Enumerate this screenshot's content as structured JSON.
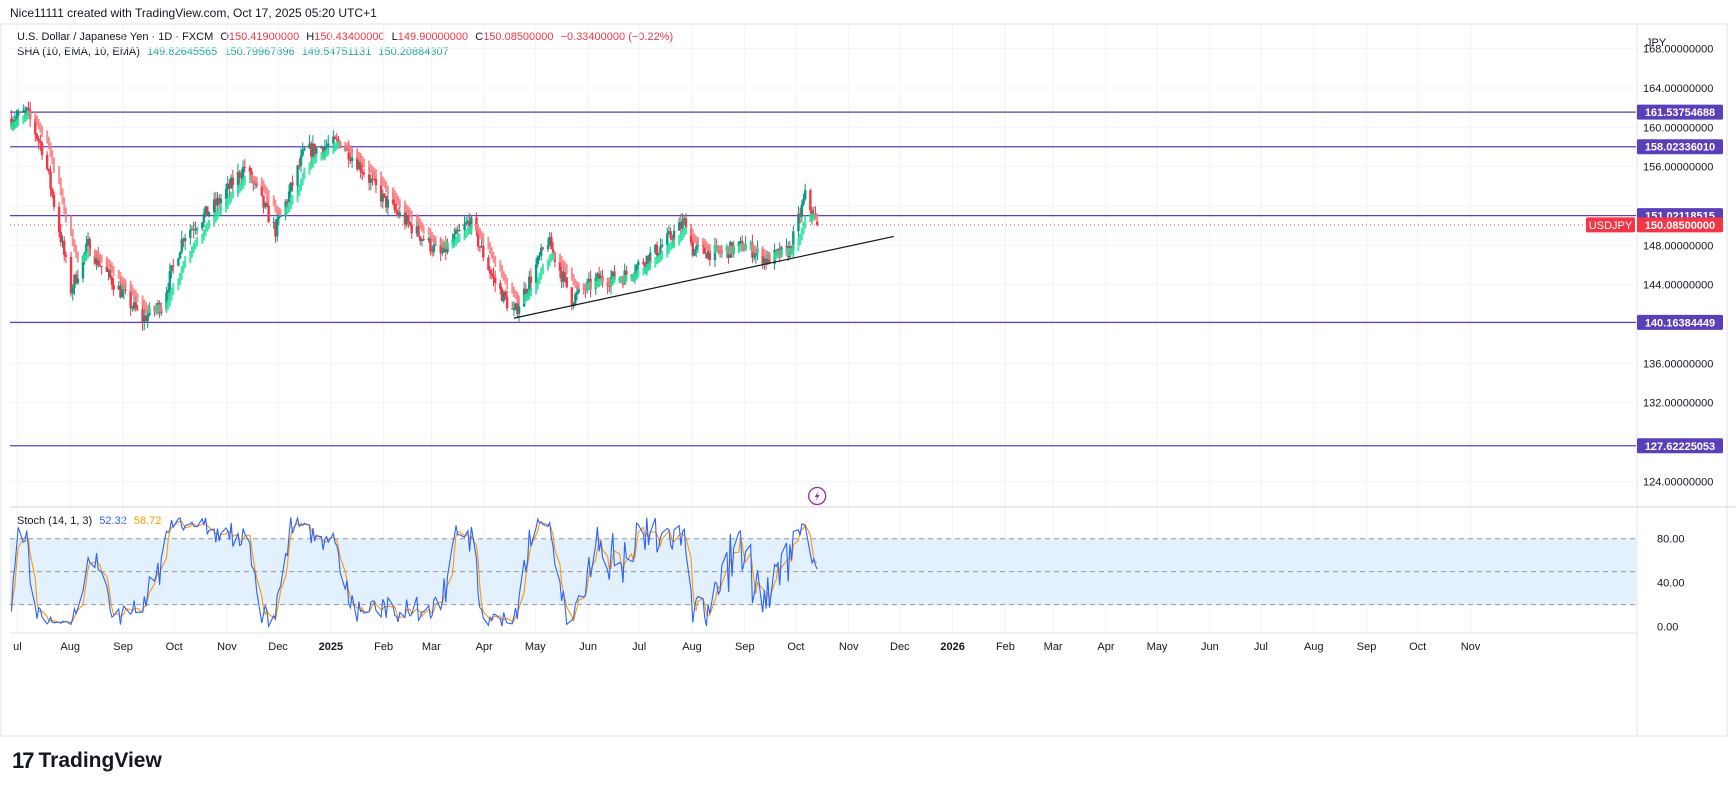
{
  "header": {
    "created_by": "Nice11111 created with TradingView.com, Oct 17, 2025 05:20 UTC+1"
  },
  "symbol": {
    "name": "U.S. Dollar / Japanese Yen · 1D · FXCM",
    "open_label": "O",
    "open": "150.41900000",
    "high_label": "H",
    "high": "150.43400000",
    "low_label": "L",
    "low": "149.90000000",
    "close_label": "C",
    "close": "150.08500000",
    "change": "−0.33400000 (−0.22%)"
  },
  "indicator_sha": {
    "name": "SHA (10, EMA, 10, EMA)",
    "v1": "149.82645565",
    "v2": "150.79967896",
    "v3": "149.54751131",
    "v4": "150.20884307"
  },
  "indicator_stoch": {
    "name": "Stoch (14, 1, 3)",
    "k": "52.32",
    "d": "58.72"
  },
  "currency": "JPY",
  "ticker_tag": "USDJPY",
  "brand": "TradingView",
  "colors": {
    "up": "#22ab94",
    "down": "#f23645",
    "line": "#5b3fb8",
    "stoch_k": "#2962ff",
    "stoch_d": "#ff9800",
    "band": "#e3f0fd"
  },
  "chart_data": [
    {
      "type": "candlestick",
      "title": "U.S. Dollar / Japanese Yen · 1D · FXCM",
      "x_labels": [
        "ul",
        "Aug",
        "Sep",
        "Oct",
        "Nov",
        "Dec",
        "2025",
        "Feb",
        "Mar",
        "Apr",
        "May",
        "Jun",
        "Jul",
        "Aug",
        "Sep",
        "Oct",
        "Nov",
        "Dec",
        "2026",
        "Feb",
        "Mar",
        "Apr",
        "May",
        "Jun",
        "Jul",
        "Aug",
        "Sep",
        "Oct",
        "Nov"
      ],
      "y_ticks": [
        "168.00000000",
        "164.00000000",
        "160.00000000",
        "156.00000000",
        "148.00000000",
        "144.00000000",
        "136.00000000",
        "132.00000000",
        "124.00000000"
      ],
      "ylim": [
        121.5,
        170.5
      ],
      "horizontal_levels": [
        {
          "value": 161.53754688,
          "label": "161.53754688"
        },
        {
          "value": 158.0233601,
          "label": "158.02336010"
        },
        {
          "value": 151.02118515,
          "label": "151.02118515"
        },
        {
          "value": 140.16384449,
          "label": "140.16384449"
        },
        {
          "value": 127.62225053,
          "label": "127.62225053"
        }
      ],
      "last_price": {
        "value": 150.085,
        "label": "150.08500000"
      },
      "trendline": {
        "from": [
          "2025-04-22",
          140.6
        ],
        "to": [
          "2025-12-01",
          148.9
        ]
      },
      "price_path": [
        [
          "2024-07-01",
          160.9
        ],
        [
          "2024-07-10",
          161.5
        ],
        [
          "2024-07-20",
          157.5
        ],
        [
          "2024-08-05",
          143.5
        ],
        [
          "2024-08-15",
          148.0
        ],
        [
          "2024-08-25",
          145.3
        ],
        [
          "2024-09-16",
          140.5
        ],
        [
          "2024-09-27",
          142.0
        ],
        [
          "2024-10-10",
          149.0
        ],
        [
          "2024-10-31",
          152.5
        ],
        [
          "2024-11-15",
          156.0
        ],
        [
          "2024-12-03",
          149.5
        ],
        [
          "2024-12-20",
          157.5
        ],
        [
          "2025-01-10",
          158.5
        ],
        [
          "2025-01-20",
          156.5
        ],
        [
          "2025-02-05",
          152.5
        ],
        [
          "2025-02-20",
          150.0
        ],
        [
          "2025-03-10",
          147.0
        ],
        [
          "2025-03-27",
          150.5
        ],
        [
          "2025-04-10",
          144.5
        ],
        [
          "2025-04-22",
          141.0
        ],
        [
          "2025-05-12",
          148.5
        ],
        [
          "2025-05-26",
          142.5
        ],
        [
          "2025-06-10",
          144.5
        ],
        [
          "2025-06-25",
          144.8
        ],
        [
          "2025-07-15",
          147.5
        ],
        [
          "2025-08-01",
          150.5
        ],
        [
          "2025-08-05",
          147.5
        ],
        [
          "2025-08-20",
          147.2
        ],
        [
          "2025-09-05",
          148.0
        ],
        [
          "2025-09-17",
          146.5
        ],
        [
          "2025-10-01",
          147.5
        ],
        [
          "2025-10-10",
          153.0
        ],
        [
          "2025-10-17",
          150.1
        ]
      ]
    },
    {
      "type": "line",
      "title": "Stoch (14, 1, 3)",
      "y_ticks": [
        "80.00",
        "40.00",
        "0.00"
      ],
      "ylim": [
        -5,
        108
      ],
      "bands": {
        "upper": 80,
        "middle": 50,
        "lower": 20
      },
      "series": [
        {
          "name": "K",
          "last": 52.32
        },
        {
          "name": "D",
          "last": 58.72
        }
      ]
    }
  ]
}
